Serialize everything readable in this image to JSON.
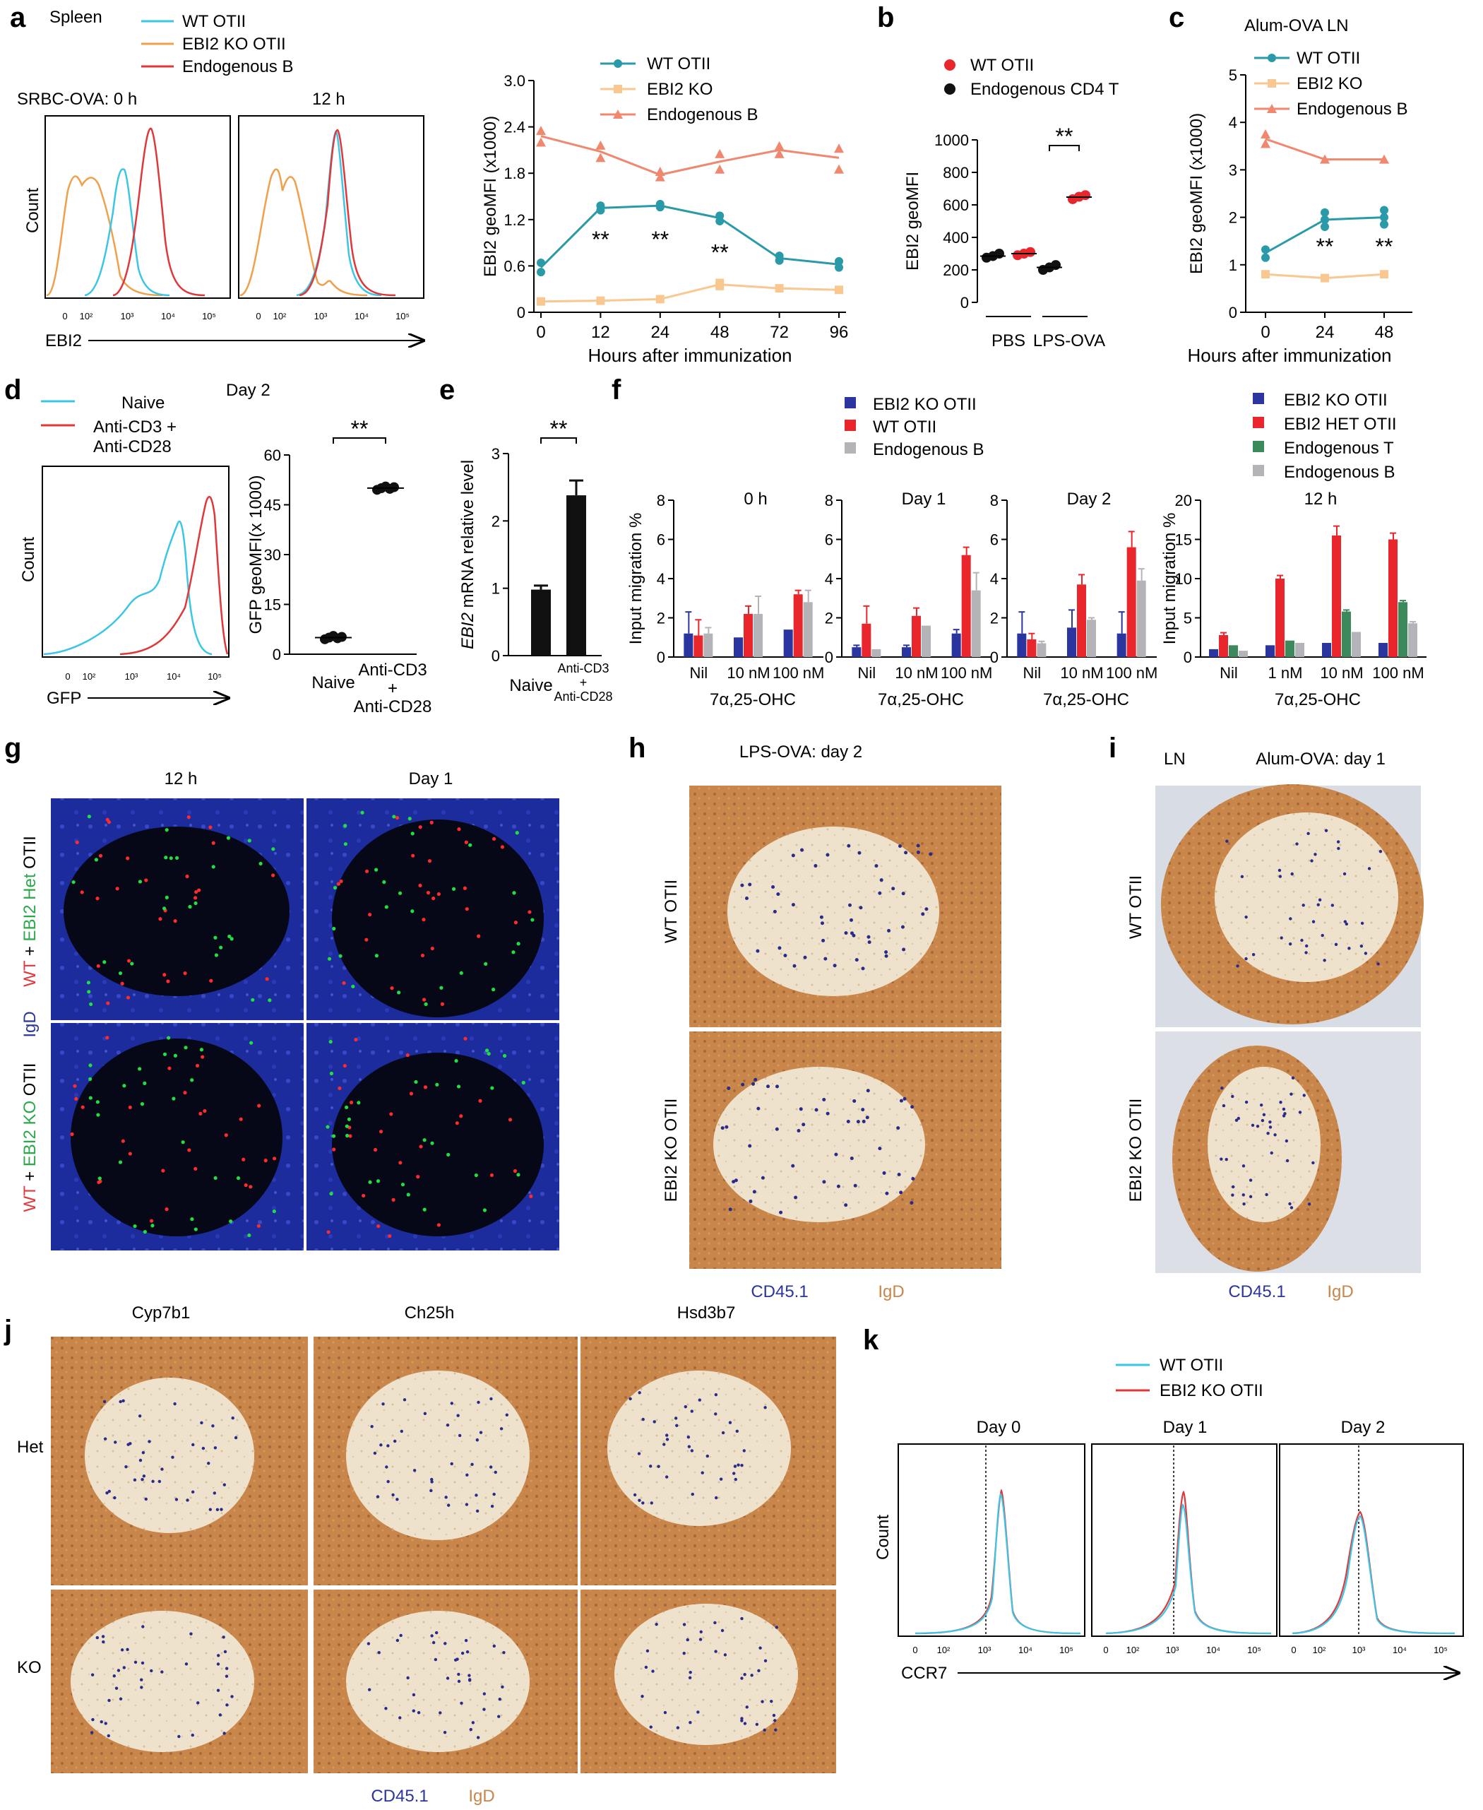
{
  "colors": {
    "wt_cyan": "#3cc6e6",
    "ko_orange": "#f0a04b",
    "endo_red": "#e0383a",
    "teal": "#2a9aa8",
    "light_orange": "#f8c890",
    "salmon": "#f08870",
    "red_dot": "#e8262c",
    "black": "#111111",
    "blue": "#2b35a0",
    "bar_red": "#e8262c",
    "grey": "#b4b4b8",
    "green": "#3c8a5c",
    "ihc_brown": "#c8864a",
    "ihc_light": "#efe2cc",
    "fluor_blue": "#1c2c9c"
  },
  "panel_letters": [
    "a",
    "b",
    "c",
    "d",
    "e",
    "f",
    "g",
    "h",
    "i",
    "j",
    "k"
  ],
  "panel_a": {
    "tissue": "Spleen",
    "legend": [
      "WT OTII",
      "EBI2 KO OTII",
      "Endogenous B"
    ],
    "hist_titles": [
      "SRBC-OVA: 0 h",
      "12 h"
    ],
    "ylabel": "Count",
    "xlabel": "EBI2",
    "xtick_labels": [
      "0",
      "10²",
      "10³",
      "10⁴",
      "10⁵"
    ]
  },
  "panel_b": {
    "legend": [
      "WT OTII",
      "Endogenous CD4 T"
    ],
    "ylabel": "EBI2 geoMFI",
    "sig": "**"
  },
  "panel_c": {
    "title": "Alum-OVA   LN",
    "sig": [
      "**",
      "**"
    ]
  },
  "panel_d": {
    "legend": [
      "Naive",
      "Anti-CD3 +",
      "Anti-CD28"
    ],
    "day": "Day 2",
    "ylabel": "Count",
    "xlabel": "GFP",
    "xtick_labels": [
      "0",
      "10²",
      "10³",
      "10⁴",
      "10⁵"
    ],
    "scatter_ylabel": "GFP geoMFI(x 1000)",
    "cat2_lines": [
      "Anti-CD3",
      "+",
      "Anti-CD28"
    ],
    "sig": "**"
  },
  "panel_e": {
    "ylabel_gene": "EBI2",
    "ylabel_rest": " mRNA relative level",
    "cat2_lines": [
      "Anti-CD3",
      "+",
      "Anti-CD28"
    ],
    "sig": "**"
  },
  "panel_f": {
    "legend_left": [
      "EBI2 KO OTII",
      "WT OTII",
      "Endogenous B"
    ],
    "legend_right": [
      "EBI2 KO OTII",
      "EBI2 HET OTII",
      "Endogenous T",
      "Endogenous B"
    ],
    "ylabel": "Input migration %",
    "xlabel": "7α,25-OHC",
    "sub_titles": [
      "0 h",
      "Day 1",
      "Day 2",
      "12 h"
    ]
  },
  "panel_g": {
    "col_titles": [
      "12 h",
      "Day 1"
    ],
    "row1": [
      "WT",
      " + ",
      "EBI2 Het",
      " OTII"
    ],
    "row2": [
      "WT",
      " + ",
      "EBI2 KO",
      " OTII"
    ],
    "stain": "IgD"
  },
  "panel_h": {
    "title": "LPS-OVA: day 2",
    "rows": [
      "WT OTII",
      "EBI2 KO OTII"
    ],
    "stain": [
      "CD45.1",
      "IgD"
    ]
  },
  "panel_i": {
    "tissue": "LN",
    "title": "Alum-OVA: day 1",
    "rows": [
      "WT OTII",
      "EBI2 KO OTII"
    ],
    "stain": [
      "CD45.1",
      "IgD"
    ]
  },
  "panel_j": {
    "cols": [
      "Cyp7b1",
      "Ch25h",
      "Hsd3b7"
    ],
    "rows": [
      "Het",
      "KO"
    ],
    "stain": [
      "CD45.1",
      "IgD"
    ]
  },
  "panel_k": {
    "legend": [
      "WT OTII",
      "EBI2 KO OTII"
    ],
    "titles": [
      "Day 0",
      "Day 1",
      "Day 2"
    ],
    "ylabel": "Count",
    "xlabel": "CCR7",
    "xtick_labels": [
      "0",
      "10²",
      "10³",
      "10⁴",
      "10⁵"
    ]
  },
  "chart_data": [
    {
      "id": "a-line",
      "type": "line",
      "x": [
        0,
        12,
        24,
        48,
        72,
        96
      ],
      "xlabel": "Hours after immunization",
      "ylabel": "EBI2 geoMFI (x1000)",
      "ylim": [
        0,
        3.0
      ],
      "yticks": [
        0,
        0.6,
        1.2,
        1.8,
        2.4,
        3.0
      ],
      "ytick_labels": [
        "0",
        "0.6",
        "1.2",
        "1.8",
        "2.4",
        "3.0"
      ],
      "series": [
        {
          "name": "WT OTII",
          "marker": "circle",
          "values": [
            0.58,
            1.35,
            1.38,
            1.22,
            0.7,
            0.62
          ],
          "points": [
            [
              0,
              0.52
            ],
            [
              0,
              0.64
            ],
            [
              12,
              1.32
            ],
            [
              12,
              1.38
            ],
            [
              24,
              1.36
            ],
            [
              24,
              1.4
            ],
            [
              48,
              1.18
            ],
            [
              48,
              1.25
            ],
            [
              72,
              0.67
            ],
            [
              72,
              0.73
            ],
            [
              96,
              0.58
            ],
            [
              96,
              0.66
            ]
          ]
        },
        {
          "name": "EBI2 KO",
          "marker": "square",
          "values": [
            0.14,
            0.15,
            0.17,
            0.36,
            0.31,
            0.29
          ],
          "points": [
            [
              0,
              0.14
            ],
            [
              12,
              0.15
            ],
            [
              24,
              0.17
            ],
            [
              48,
              0.34
            ],
            [
              48,
              0.38
            ],
            [
              72,
              0.31
            ],
            [
              96,
              0.29
            ]
          ]
        },
        {
          "name": "Endogenous B",
          "marker": "triangle",
          "values": [
            2.28,
            2.08,
            1.78,
            1.95,
            2.1,
            2.0
          ],
          "points": [
            [
              0,
              2.2
            ],
            [
              0,
              2.35
            ],
            [
              12,
              2.0
            ],
            [
              12,
              2.16
            ],
            [
              24,
              1.75
            ],
            [
              24,
              1.82
            ],
            [
              48,
              1.85
            ],
            [
              48,
              2.05
            ],
            [
              72,
              2.05
            ],
            [
              72,
              2.15
            ],
            [
              96,
              1.85
            ],
            [
              96,
              2.12
            ]
          ]
        }
      ],
      "annotations": [
        {
          "x": 12,
          "y": 0.95,
          "text": "**"
        },
        {
          "x": 24,
          "y": 0.95,
          "text": "**"
        },
        {
          "x": 48,
          "y": 0.78,
          "text": "**"
        }
      ]
    },
    {
      "id": "b-scatter",
      "type": "scatter",
      "ylabel": "EBI2 geoMFI",
      "ylim": [
        0,
        1000
      ],
      "yticks": [
        0,
        200,
        400,
        600,
        800,
        1000
      ],
      "groups": [
        "PBS",
        "LPS-OVA"
      ],
      "series": [
        {
          "name": "WT OTII",
          "points": [
            [
              1,
              290
            ],
            [
              1,
              300
            ],
            [
              1,
              310
            ],
            [
              3,
              635
            ],
            [
              3,
              650
            ],
            [
              3,
              660
            ]
          ]
        },
        {
          "name": "Endogenous CD4 T",
          "points": [
            [
              0,
              275
            ],
            [
              0,
              285
            ],
            [
              0,
              300
            ],
            [
              2,
              200
            ],
            [
              2,
              215
            ],
            [
              2,
              230
            ]
          ]
        }
      ],
      "means": [
        [
          0,
          285
        ],
        [
          1,
          300
        ],
        [
          2,
          215
        ],
        [
          3,
          648
        ]
      ]
    },
    {
      "id": "c-line",
      "type": "line",
      "x": [
        0,
        24,
        48
      ],
      "xlabel": "Hours after immunization",
      "ylabel": "EBI2 geoMFI (x1000)",
      "ylim": [
        0,
        5
      ],
      "yticks": [
        0,
        1,
        2,
        3,
        4,
        5
      ],
      "series": [
        {
          "name": "WT OTII",
          "marker": "circle",
          "values": [
            1.25,
            1.95,
            2.0
          ],
          "points": [
            [
              0,
              1.15
            ],
            [
              0,
              1.32
            ],
            [
              24,
              1.8
            ],
            [
              24,
              1.95
            ],
            [
              24,
              2.1
            ],
            [
              48,
              1.85
            ],
            [
              48,
              2.0
            ],
            [
              48,
              2.15
            ]
          ]
        },
        {
          "name": "EBI2 KO",
          "marker": "square",
          "values": [
            0.8,
            0.72,
            0.8
          ],
          "points": [
            [
              0,
              0.8
            ],
            [
              24,
              0.72
            ],
            [
              48,
              0.8
            ]
          ]
        },
        {
          "name": "Endogenous B",
          "marker": "triangle",
          "values": [
            3.65,
            3.22,
            3.22
          ],
          "points": [
            [
              0,
              3.55
            ],
            [
              0,
              3.75
            ],
            [
              24,
              3.22
            ],
            [
              48,
              3.22
            ]
          ]
        }
      ],
      "annotations": [
        {
          "x": 24,
          "y": 1.4,
          "text": "**"
        },
        {
          "x": 48,
          "y": 1.4,
          "text": "**"
        }
      ]
    },
    {
      "id": "d-scatter",
      "type": "scatter",
      "ylabel": "GFP geoMFI(x 1000)",
      "ylim": [
        0,
        60
      ],
      "yticks": [
        0,
        15,
        30,
        45,
        60
      ],
      "categories": [
        "Naive",
        "Anti-CD3 + Anti-CD28"
      ],
      "series": [
        {
          "name": "Naive",
          "points": [
            [
              0,
              4.5
            ],
            [
              0,
              5.0
            ],
            [
              0,
              5.5
            ],
            [
              0,
              4.8
            ],
            [
              0,
              5.2
            ]
          ]
        },
        {
          "name": "Anti-CD3 + Anti-CD28",
          "points": [
            [
              1,
              49.5
            ],
            [
              1,
              50.0
            ],
            [
              1,
              50.5
            ],
            [
              1,
              49.8
            ],
            [
              1,
              50.3
            ]
          ]
        }
      ]
    },
    {
      "id": "e-bar",
      "type": "bar",
      "ylabel": "EBI2 mRNA relative level",
      "ylim": [
        0,
        3
      ],
      "yticks": [
        0,
        1,
        2,
        3
      ],
      "categories": [
        "Naive",
        "Anti-CD3 + Anti-CD28"
      ],
      "values": [
        0.98,
        2.38
      ],
      "errors": [
        0.06,
        0.22
      ]
    },
    {
      "id": "f-bar-1",
      "type": "bar",
      "title": "0 h",
      "categories": [
        "Nil",
        "10 nM",
        "100 nM"
      ],
      "ylim": [
        0,
        8
      ],
      "yticks": [
        0,
        2,
        4,
        6,
        8
      ],
      "series": [
        {
          "name": "EBI2 KO OTII",
          "values": [
            1.2,
            1.0,
            1.4
          ],
          "errors": [
            1.1,
            0.0,
            0.0
          ]
        },
        {
          "name": "WT OTII",
          "values": [
            1.1,
            2.2,
            3.2
          ],
          "errors": [
            0.8,
            0.4,
            0.2
          ]
        },
        {
          "name": "Endogenous B",
          "values": [
            1.2,
            2.2,
            2.8
          ],
          "errors": [
            0.3,
            0.9,
            0.6
          ]
        }
      ]
    },
    {
      "id": "f-bar-2",
      "type": "bar",
      "title": "Day 1",
      "categories": [
        "Nil",
        "10 nM",
        "100 nM"
      ],
      "ylim": [
        0,
        8
      ],
      "yticks": [
        0,
        2,
        4,
        6,
        8
      ],
      "series": [
        {
          "name": "EBI2 KO OTII",
          "values": [
            0.5,
            0.5,
            1.2
          ],
          "errors": [
            0.1,
            0.1,
            0.2
          ]
        },
        {
          "name": "WT OTII",
          "values": [
            1.7,
            2.1,
            5.2
          ],
          "errors": [
            0.9,
            0.4,
            0.4
          ]
        },
        {
          "name": "Endogenous B",
          "values": [
            0.4,
            1.6,
            3.4
          ],
          "errors": [
            0.0,
            0.0,
            0.9
          ]
        }
      ]
    },
    {
      "id": "f-bar-3",
      "type": "bar",
      "title": "Day 2",
      "categories": [
        "Nil",
        "10 nM",
        "100 nM"
      ],
      "ylim": [
        0,
        8
      ],
      "yticks": [
        0,
        2,
        4,
        6,
        8
      ],
      "series": [
        {
          "name": "EBI2 KO OTII",
          "values": [
            1.2,
            1.5,
            1.2
          ],
          "errors": [
            1.1,
            0.9,
            1.1
          ]
        },
        {
          "name": "WT OTII",
          "values": [
            0.9,
            3.7,
            5.6
          ],
          "errors": [
            0.3,
            0.5,
            0.8
          ]
        },
        {
          "name": "Endogenous B",
          "values": [
            0.7,
            1.9,
            3.9
          ],
          "errors": [
            0.1,
            0.1,
            0.6
          ]
        }
      ]
    },
    {
      "id": "f-bar-4",
      "type": "bar",
      "title": "12 h",
      "categories": [
        "Nil",
        "1 nM",
        "10 nM",
        "100 nM"
      ],
      "ylim": [
        0,
        20
      ],
      "yticks": [
        0,
        5,
        10,
        15,
        20
      ],
      "series": [
        {
          "name": "EBI2 KO OTII",
          "values": [
            1.0,
            1.5,
            1.8,
            1.8
          ],
          "errors": [
            0,
            0,
            0,
            0
          ]
        },
        {
          "name": "EBI2 HET OTII",
          "values": [
            2.8,
            10.0,
            15.5,
            15.0
          ],
          "errors": [
            0.3,
            0.4,
            1.2,
            0.8
          ]
        },
        {
          "name": "Endogenous T",
          "values": [
            1.5,
            2.1,
            5.8,
            7.0
          ],
          "errors": [
            0,
            0,
            0.2,
            0.2
          ]
        },
        {
          "name": "Endogenous B",
          "values": [
            0.8,
            1.8,
            3.2,
            4.3
          ],
          "errors": [
            0,
            0,
            0,
            0.2
          ]
        }
      ]
    }
  ]
}
